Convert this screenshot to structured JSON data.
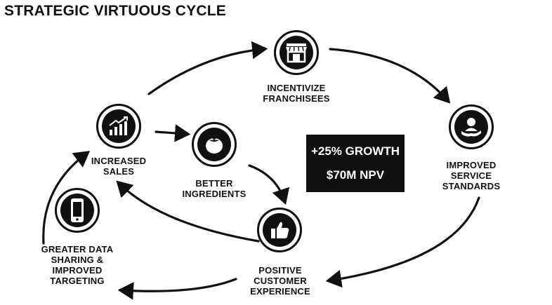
{
  "title": "STRATEGIC VIRTUOUS CYCLE",
  "nodes": {
    "incentivize": {
      "icon": "storefront-icon",
      "line1": "INCENTIVIZE",
      "line2": "FRANCHISEES"
    },
    "service": {
      "icon": "hand-person-icon",
      "line1": "IMPROVED",
      "line2": "SERVICE",
      "line3": "STANDARDS"
    },
    "customer": {
      "icon": "thumbs-up-icon",
      "line1": "POSITIVE",
      "line2": "CUSTOMER",
      "line3": "EXPERIENCE"
    },
    "data": {
      "icon": "smartphone-icon",
      "line1": "GREATER DATA",
      "line2": "SHARING &",
      "line3": "IMPROVED",
      "line4": "TARGETING"
    },
    "sales": {
      "icon": "bar-chart-up-icon",
      "line1": "INCREASED",
      "line2": "SALES"
    },
    "ingredients": {
      "icon": "tomato-icon",
      "line1": "BETTER",
      "line2": "INGREDIENTS"
    }
  },
  "center_box": {
    "line1": "+25% GROWTH",
    "line2": "$70M NPV"
  }
}
